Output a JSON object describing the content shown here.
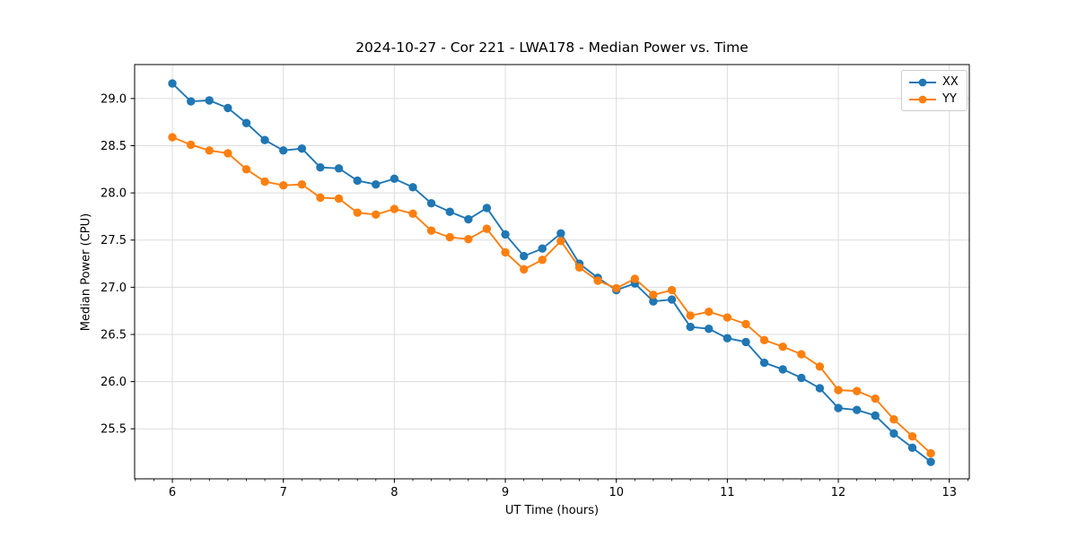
{
  "chart_data": {
    "type": "line",
    "title": "2024-10-27 - Cor 221 - LWA178 - Median Power vs. Time",
    "xlabel": "UT Time (hours)",
    "ylabel": "Median Power (CPU)",
    "xlim": [
      5.66,
      13.18
    ],
    "ylim": [
      24.97,
      29.36
    ],
    "x_ticks": [
      6,
      7,
      8,
      9,
      10,
      11,
      12,
      13
    ],
    "y_ticks": [
      25.5,
      26.0,
      26.5,
      27.0,
      27.5,
      28.0,
      28.5,
      29.0
    ],
    "x_minor_tick_step_hours": 0.166667,
    "grid": true,
    "legend": {
      "position": "upper right",
      "entries": [
        "XX",
        "YY"
      ]
    },
    "x_hours": [
      6.0,
      6.167,
      6.333,
      6.5,
      6.667,
      6.833,
      7.0,
      7.167,
      7.333,
      7.5,
      7.667,
      7.833,
      8.0,
      8.167,
      8.333,
      8.5,
      8.667,
      8.833,
      9.0,
      9.167,
      9.333,
      9.5,
      9.667,
      9.833,
      10.0,
      10.167,
      10.333,
      10.5,
      10.667,
      10.833,
      11.0,
      11.167,
      11.333,
      11.5,
      11.667,
      11.833,
      12.0,
      12.167,
      12.333,
      12.5,
      12.667,
      12.833
    ],
    "series": [
      {
        "name": "XX",
        "color": "#1f77b4",
        "values": [
          29.16,
          28.97,
          28.98,
          28.9,
          28.74,
          28.56,
          28.45,
          28.47,
          28.27,
          28.26,
          28.13,
          28.09,
          28.15,
          28.06,
          27.89,
          27.8,
          27.72,
          27.84,
          27.56,
          27.33,
          27.41,
          27.57,
          27.25,
          27.1,
          26.97,
          27.04,
          26.85,
          26.87,
          26.58,
          26.56,
          26.46,
          26.42,
          26.2,
          26.13,
          26.04,
          25.93,
          25.72,
          25.7,
          25.64,
          25.45,
          25.3,
          25.15
        ]
      },
      {
        "name": "YY",
        "color": "#ff7f0e",
        "values": [
          28.59,
          28.51,
          28.45,
          28.42,
          28.25,
          28.12,
          28.08,
          28.09,
          27.95,
          27.94,
          27.79,
          27.77,
          27.83,
          27.78,
          27.6,
          27.53,
          27.51,
          27.62,
          27.37,
          27.19,
          27.29,
          27.49,
          27.21,
          27.07,
          26.99,
          27.09,
          26.92,
          26.97,
          26.7,
          26.74,
          26.68,
          26.61,
          26.44,
          26.37,
          26.29,
          26.16,
          25.91,
          25.9,
          25.82,
          25.6,
          25.42,
          25.24
        ]
      }
    ]
  },
  "colors": {
    "background": "#ffffff",
    "grid": "#dcdcdc",
    "spine": "#000000",
    "legend_border": "#cccccc",
    "series_xx": "#1f77b4",
    "series_yy": "#ff7f0e"
  }
}
